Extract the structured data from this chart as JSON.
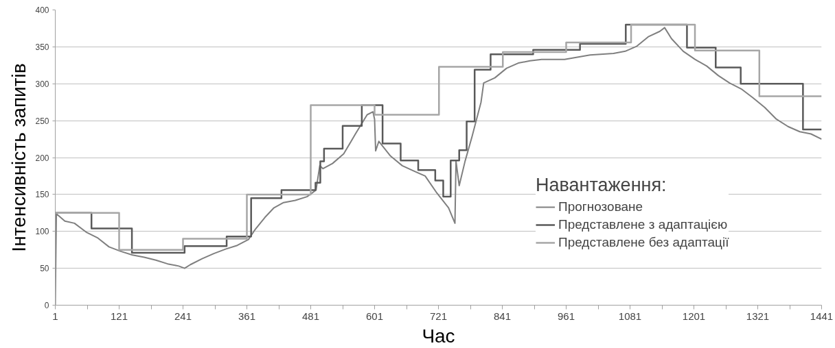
{
  "chart_data": {
    "type": "line",
    "xlabel": "Час",
    "ylabel": "Інтенсивність запитів",
    "legend_title": "Навантаження:",
    "legend": "right",
    "grid": "y",
    "xlim": [
      1,
      1441
    ],
    "ylim": [
      0,
      400
    ],
    "xticks": [
      1,
      {
        "value": 61,
        "label": null
      },
      121,
      {
        "value": 181,
        "label": null
      },
      241,
      {
        "value": 301,
        "label": null
      },
      361,
      {
        "value": 421,
        "label": null
      },
      481,
      {
        "value": 541,
        "label": null
      },
      601,
      {
        "value": 661,
        "label": null
      },
      721,
      {
        "value": 781,
        "label": null
      },
      841,
      {
        "value": 901,
        "label": null
      },
      961,
      {
        "value": 1021,
        "label": null
      },
      1081,
      {
        "value": 1141,
        "label": null
      },
      1201,
      {
        "value": 1261,
        "label": null
      },
      1321,
      {
        "value": 1381,
        "label": null
      },
      1441
    ],
    "yticks": [
      0,
      50,
      100,
      150,
      200,
      250,
      300,
      350,
      400
    ],
    "series": [
      {
        "name": "Прогнозоване",
        "color": "#7f7f7f",
        "x": [
          1,
          3,
          19,
          37,
          59,
          81,
          102,
          124,
          146,
          168,
          190,
          212,
          233,
          244,
          255,
          277,
          299,
          321,
          343,
          364,
          377,
          395,
          412,
          430,
          452,
          474,
          478,
          491,
          498,
          504,
          522,
          543,
          565,
          587,
          598,
          601,
          603,
          609,
          631,
          653,
          674,
          696,
          718,
          740,
          752,
          754,
          760,
          771,
          784,
          801,
          806,
          827,
          849,
          871,
          893,
          915,
          937,
          958,
          1006,
          1050,
          1072,
          1094,
          1116,
          1137,
          1146,
          1159,
          1181,
          1203,
          1225,
          1247,
          1268,
          1290,
          1312,
          1334,
          1356,
          1378,
          1400,
          1421,
          1441
        ],
        "values": [
          0,
          124,
          114,
          111,
          99,
          91,
          79,
          73,
          68,
          65,
          61,
          56,
          53,
          50,
          55,
          63,
          70,
          76,
          81,
          89,
          103,
          119,
          132,
          139,
          142,
          147,
          149,
          156,
          189,
          185,
          192,
          205,
          232,
          258,
          262,
          252,
          209,
          222,
          202,
          189,
          182,
          175,
          152,
          132,
          111,
          195,
          162,
          195,
          228,
          275,
          301,
          308,
          321,
          328,
          331,
          333,
          333,
          333,
          339,
          341,
          344,
          351,
          364,
          371,
          376,
          361,
          344,
          333,
          324,
          311,
          301,
          293,
          281,
          268,
          252,
          242,
          235,
          232,
          225
        ]
      },
      {
        "name": "Представлене з адаптацією",
        "type": "step",
        "color": "#595959",
        "x": [
          1,
          69,
          145,
          244,
          323,
          369,
          426,
          490,
          499,
          506,
          541,
          577,
          616,
          650,
          683,
          715,
          730,
          744,
          760,
          774,
          789,
          819,
          899,
          987,
          1073,
          1188,
          1242,
          1289,
          1406,
          1441
        ],
        "values": [
          125,
          104,
          71,
          80,
          93,
          145,
          156,
          166,
          195,
          212,
          243,
          271,
          219,
          196,
          183,
          169,
          147,
          196,
          210,
          249,
          319,
          340,
          346,
          354,
          380,
          349,
          322,
          300,
          238,
          238
        ]
      },
      {
        "name": "Представлене без адаптації",
        "type": "step",
        "color": "#a6a6a6",
        "x": [
          1,
          121,
          241,
          361,
          481,
          601,
          722,
          842,
          961,
          1083,
          1203,
          1324,
          1441
        ],
        "values": [
          125,
          75,
          90,
          150,
          271,
          258,
          323,
          343,
          356,
          380,
          345,
          283,
          283
        ]
      }
    ]
  }
}
